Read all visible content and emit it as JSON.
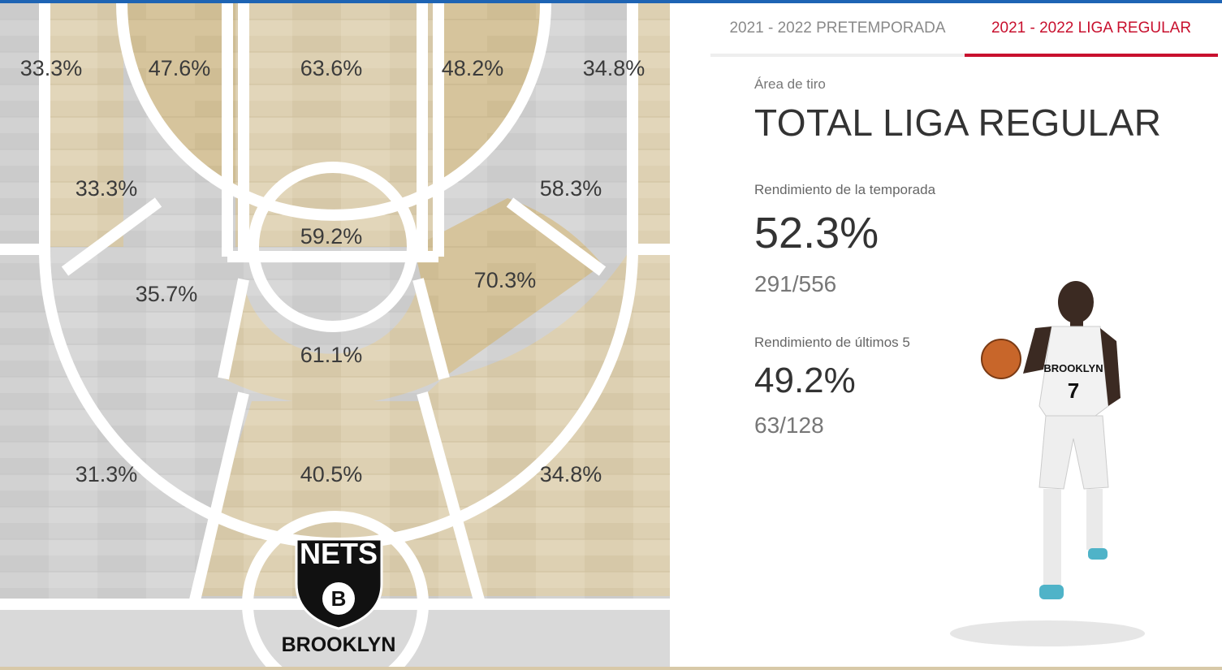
{
  "tabs": [
    {
      "label": "2021 - 2022 PRETEMPORADA",
      "active": false
    },
    {
      "label": "2021 - 2022 LIGA REGULAR",
      "active": true
    }
  ],
  "panel": {
    "area_caption": "Área de tiro",
    "title": "TOTAL LIGA REGULAR",
    "season": {
      "caption": "Rendimiento de la temporada",
      "pct": "52.3%",
      "frac": "291/556"
    },
    "last5": {
      "caption": "Rendimiento de últimos 5",
      "pct": "49.2%",
      "frac": "63/128"
    }
  },
  "court": {
    "zones": {
      "corner_left": "33.3%",
      "wing_left": "47.6%",
      "paint_top": "63.6%",
      "wing_right": "48.2%",
      "corner_right": "34.8%",
      "mid_left": "33.3%",
      "mid_right": "58.3%",
      "restricted": "59.2%",
      "elbow_left": "35.7%",
      "elbow_right": "70.3%",
      "top_key": "61.1%",
      "three_left": "31.3%",
      "three_center": "40.5%",
      "three_right": "34.8%"
    },
    "logo": {
      "top_text": "NETS",
      "letter": "B",
      "bottom_text": "BROOKLYN"
    }
  },
  "colors": {
    "accent": "#c8102e",
    "tan": "#d8c9a8",
    "gray": "#cfcfcf",
    "top_bar": "#1e64b4"
  },
  "player": {
    "jersey_text": "BROOKLYN",
    "number": "7"
  }
}
